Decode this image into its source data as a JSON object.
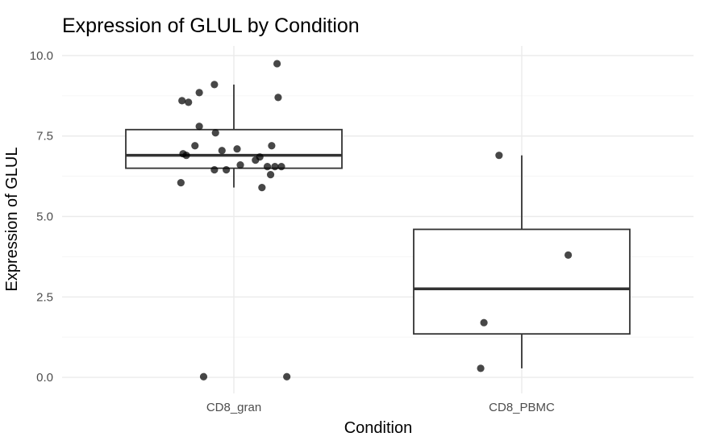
{
  "chart_data": {
    "type": "box",
    "title": "Expression of GLUL by Condition",
    "xlabel": "Condition",
    "ylabel": "Expression of GLUL",
    "ylim": [
      -0.5,
      10.3
    ],
    "yticks": [
      0.0,
      2.5,
      5.0,
      7.5,
      10.0
    ],
    "ytick_labels": [
      "0.0",
      "2.5",
      "5.0",
      "7.5",
      "10.0"
    ],
    "grid": true,
    "legend": "none",
    "categories": [
      "CD8_gran",
      "CD8_PBMC"
    ],
    "boxes": [
      {
        "category": "CD8_gran",
        "q1": 6.5,
        "median": 6.9,
        "q3": 7.7,
        "whisker_low": 5.9,
        "whisker_high": 9.1
      },
      {
        "category": "CD8_PBMC",
        "q1": 1.35,
        "median": 2.75,
        "q3": 4.6,
        "whisker_low": 0.28,
        "whisker_high": 6.9
      }
    ],
    "points": [
      {
        "category": "CD8_gran",
        "jitter": 0.4,
        "y": 9.75
      },
      {
        "category": "CD8_gran",
        "jitter": -0.18,
        "y": 9.1
      },
      {
        "category": "CD8_gran",
        "jitter": -0.32,
        "y": 8.85
      },
      {
        "category": "CD8_gran",
        "jitter": 0.41,
        "y": 8.7
      },
      {
        "category": "CD8_gran",
        "jitter": -0.48,
        "y": 8.6
      },
      {
        "category": "CD8_gran",
        "jitter": -0.42,
        "y": 8.55
      },
      {
        "category": "CD8_gran",
        "jitter": -0.32,
        "y": 7.8
      },
      {
        "category": "CD8_gran",
        "jitter": -0.17,
        "y": 7.6
      },
      {
        "category": "CD8_gran",
        "jitter": -0.36,
        "y": 7.2
      },
      {
        "category": "CD8_gran",
        "jitter": 0.35,
        "y": 7.2
      },
      {
        "category": "CD8_gran",
        "jitter": 0.03,
        "y": 7.1
      },
      {
        "category": "CD8_gran",
        "jitter": -0.11,
        "y": 7.05
      },
      {
        "category": "CD8_gran",
        "jitter": -0.47,
        "y": 6.95
      },
      {
        "category": "CD8_gran",
        "jitter": -0.44,
        "y": 6.9
      },
      {
        "category": "CD8_gran",
        "jitter": 0.24,
        "y": 6.85
      },
      {
        "category": "CD8_gran",
        "jitter": 0.2,
        "y": 6.75
      },
      {
        "category": "CD8_gran",
        "jitter": 0.06,
        "y": 6.6
      },
      {
        "category": "CD8_gran",
        "jitter": 0.31,
        "y": 6.55
      },
      {
        "category": "CD8_gran",
        "jitter": 0.38,
        "y": 6.55
      },
      {
        "category": "CD8_gran",
        "jitter": 0.44,
        "y": 6.55
      },
      {
        "category": "CD8_gran",
        "jitter": -0.18,
        "y": 6.45
      },
      {
        "category": "CD8_gran",
        "jitter": -0.07,
        "y": 6.45
      },
      {
        "category": "CD8_gran",
        "jitter": 0.34,
        "y": 6.3
      },
      {
        "category": "CD8_gran",
        "jitter": -0.49,
        "y": 6.05
      },
      {
        "category": "CD8_gran",
        "jitter": 0.26,
        "y": 5.9
      },
      {
        "category": "CD8_gran",
        "jitter": -0.28,
        "y": 0.02
      },
      {
        "category": "CD8_gran",
        "jitter": 0.49,
        "y": 0.02
      },
      {
        "category": "CD8_PBMC",
        "jitter": -0.21,
        "y": 6.9
      },
      {
        "category": "CD8_PBMC",
        "jitter": 0.43,
        "y": 3.8
      },
      {
        "category": "CD8_PBMC",
        "jitter": -0.35,
        "y": 1.7
      },
      {
        "category": "CD8_PBMC",
        "jitter": -0.38,
        "y": 0.28
      }
    ]
  }
}
